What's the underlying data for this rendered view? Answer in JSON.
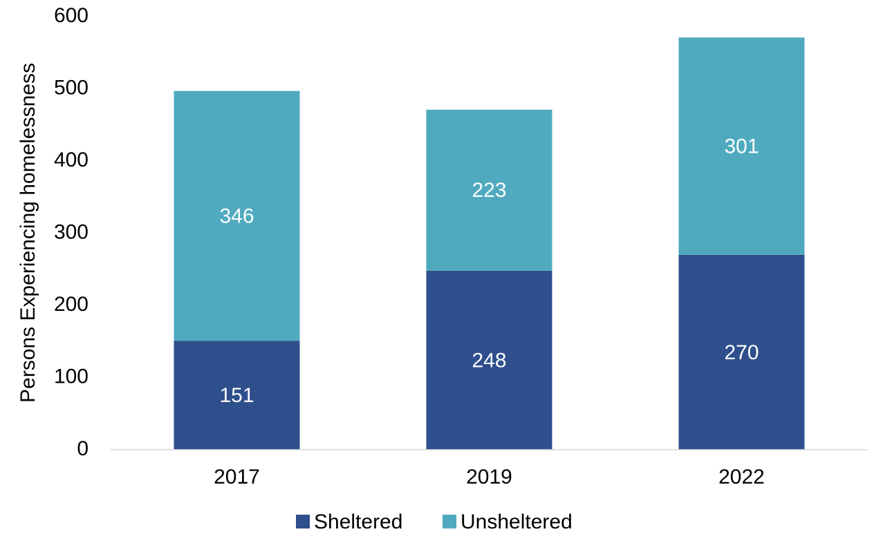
{
  "chart_data": {
    "type": "stacked_bar",
    "y_label": "Persons Experiencing homelessness",
    "categories": [
      "2017",
      "2019",
      "2022"
    ],
    "series": [
      {
        "name": "Sheltered",
        "color": "#2e4f8b",
        "values": [
          151,
          248,
          270
        ]
      },
      {
        "name": "Unsheltered",
        "color": "#4faabf",
        "values": [
          346,
          223,
          301
        ]
      }
    ],
    "ylim": [
      0,
      600
    ],
    "yticks": [
      0,
      100,
      200,
      300,
      400,
      500,
      600
    ],
    "grid": false,
    "legend": "bottom"
  }
}
